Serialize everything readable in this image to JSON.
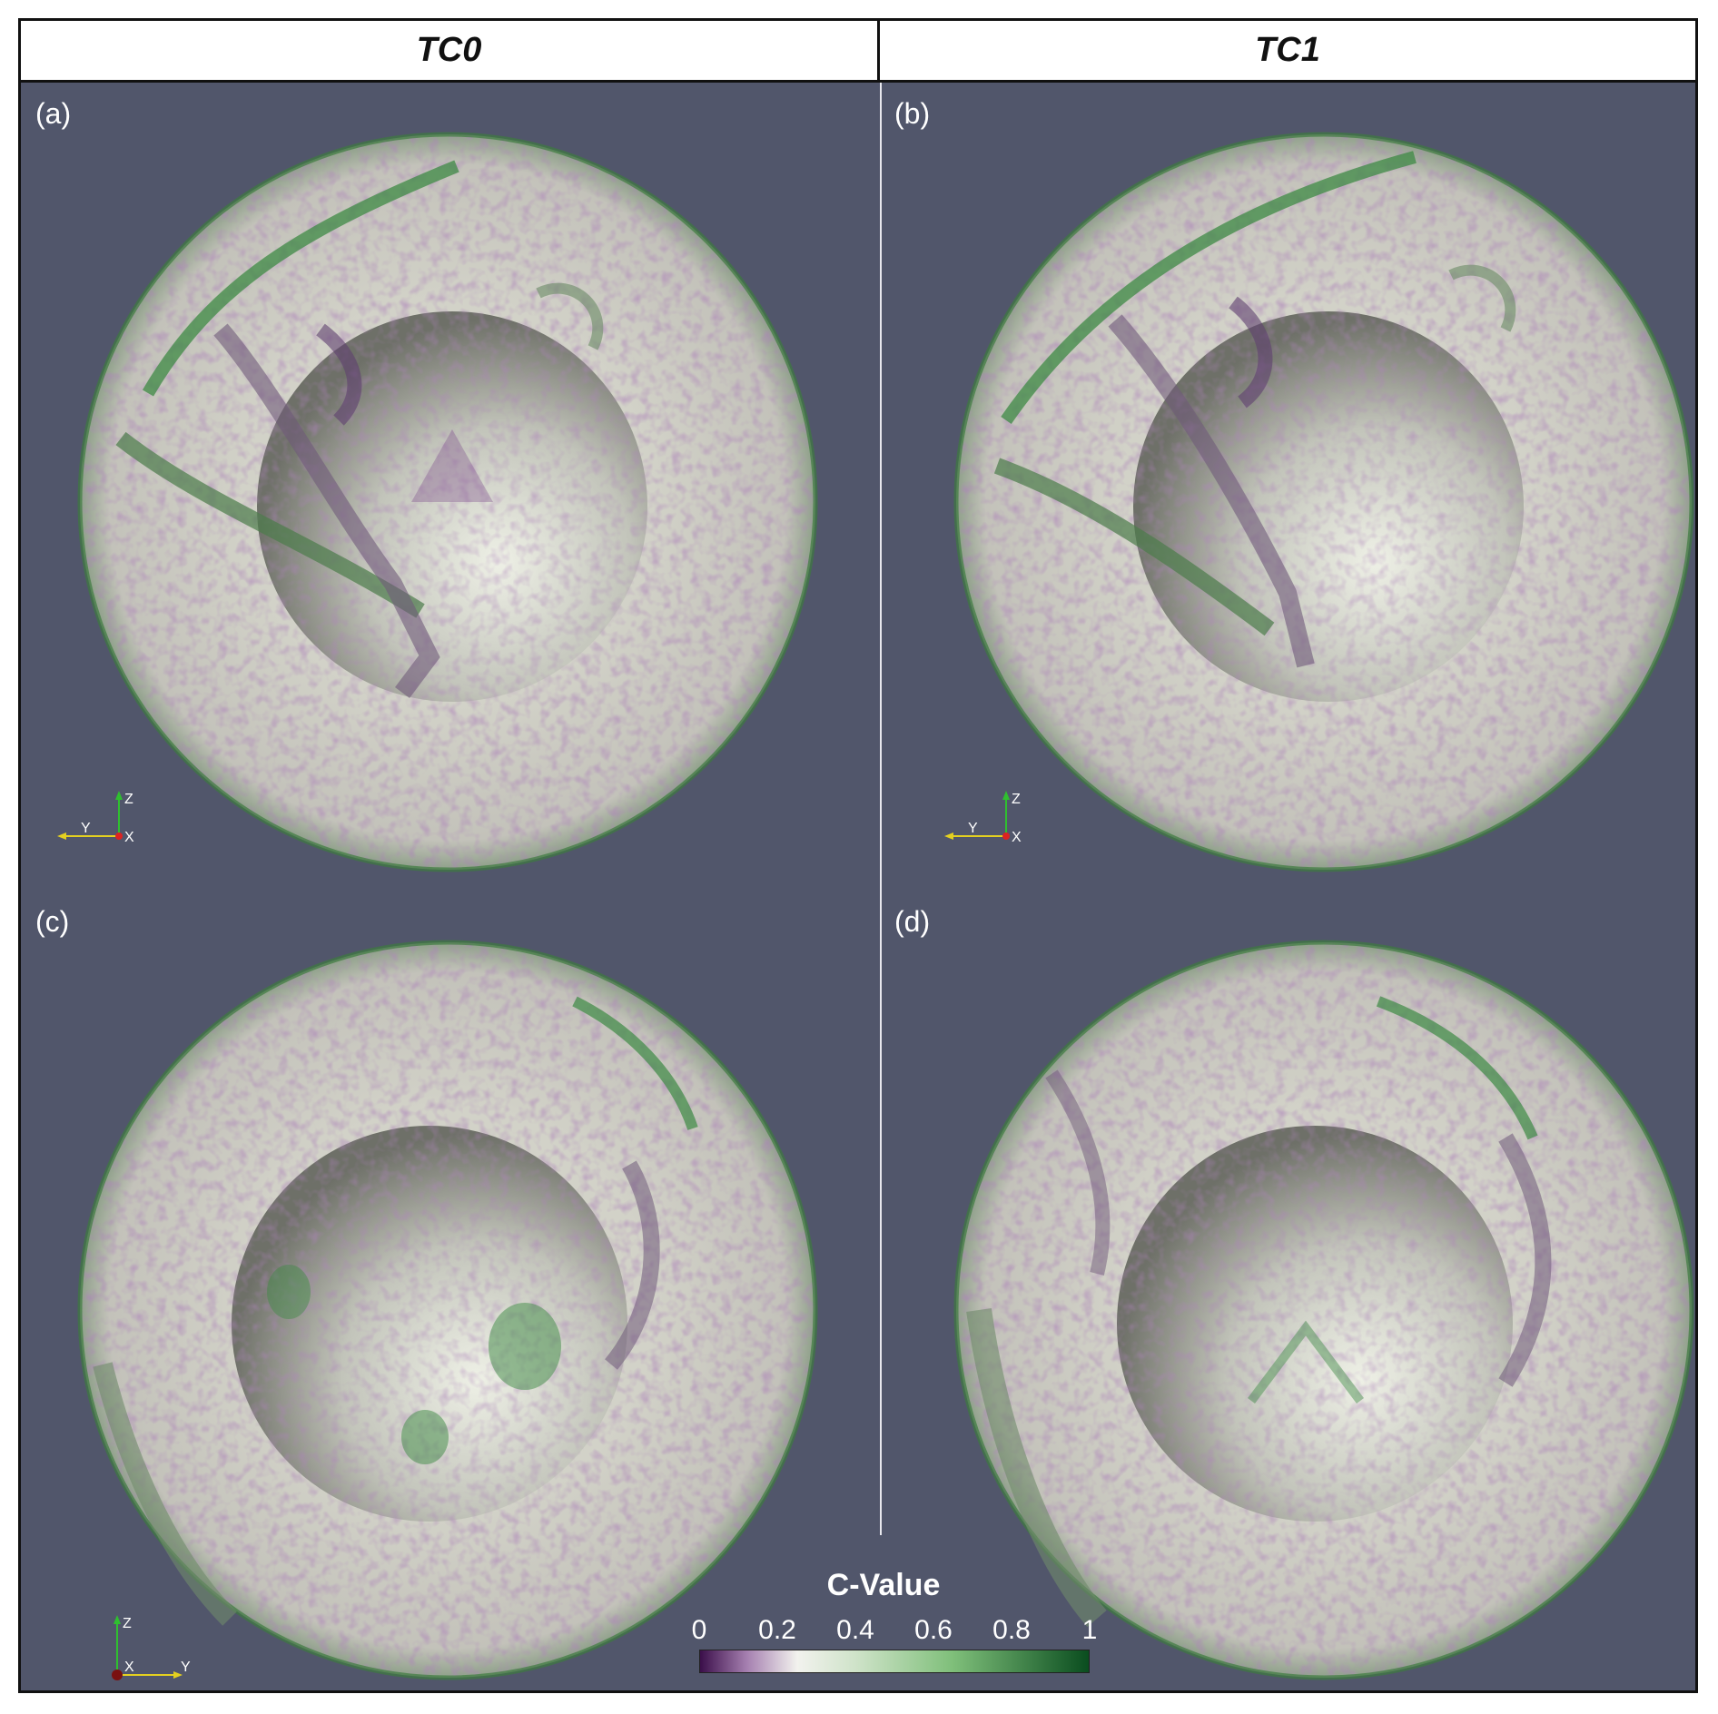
{
  "headers": {
    "left": "TC0",
    "right": "TC1"
  },
  "panels": [
    {
      "label": "(a)",
      "axes": {
        "up": "Z",
        "left": "Y",
        "origin": "X"
      }
    },
    {
      "label": "(b)",
      "axes": {
        "up": "Z",
        "left": "Y",
        "origin": "X"
      }
    },
    {
      "label": "(c)",
      "axes": {
        "up": "Z",
        "origin": "X",
        "right": "Y"
      }
    },
    {
      "label": "(d)"
    }
  ],
  "colorbar": {
    "title": "C-Value",
    "ticks": [
      "0",
      "0.2",
      "0.4",
      "0.6",
      "0.8",
      "1"
    ],
    "colors": {
      "low": "#3b0f4a",
      "mid": "#f2f2ee",
      "high": "#0a4d1f"
    }
  },
  "colors": {
    "background": "#51566b",
    "shell": "#c9c9c0",
    "inner_sphere": "#b9bbb0",
    "green_structure": "#3d8a44",
    "purple_speckle": "#6a3a7c"
  }
}
